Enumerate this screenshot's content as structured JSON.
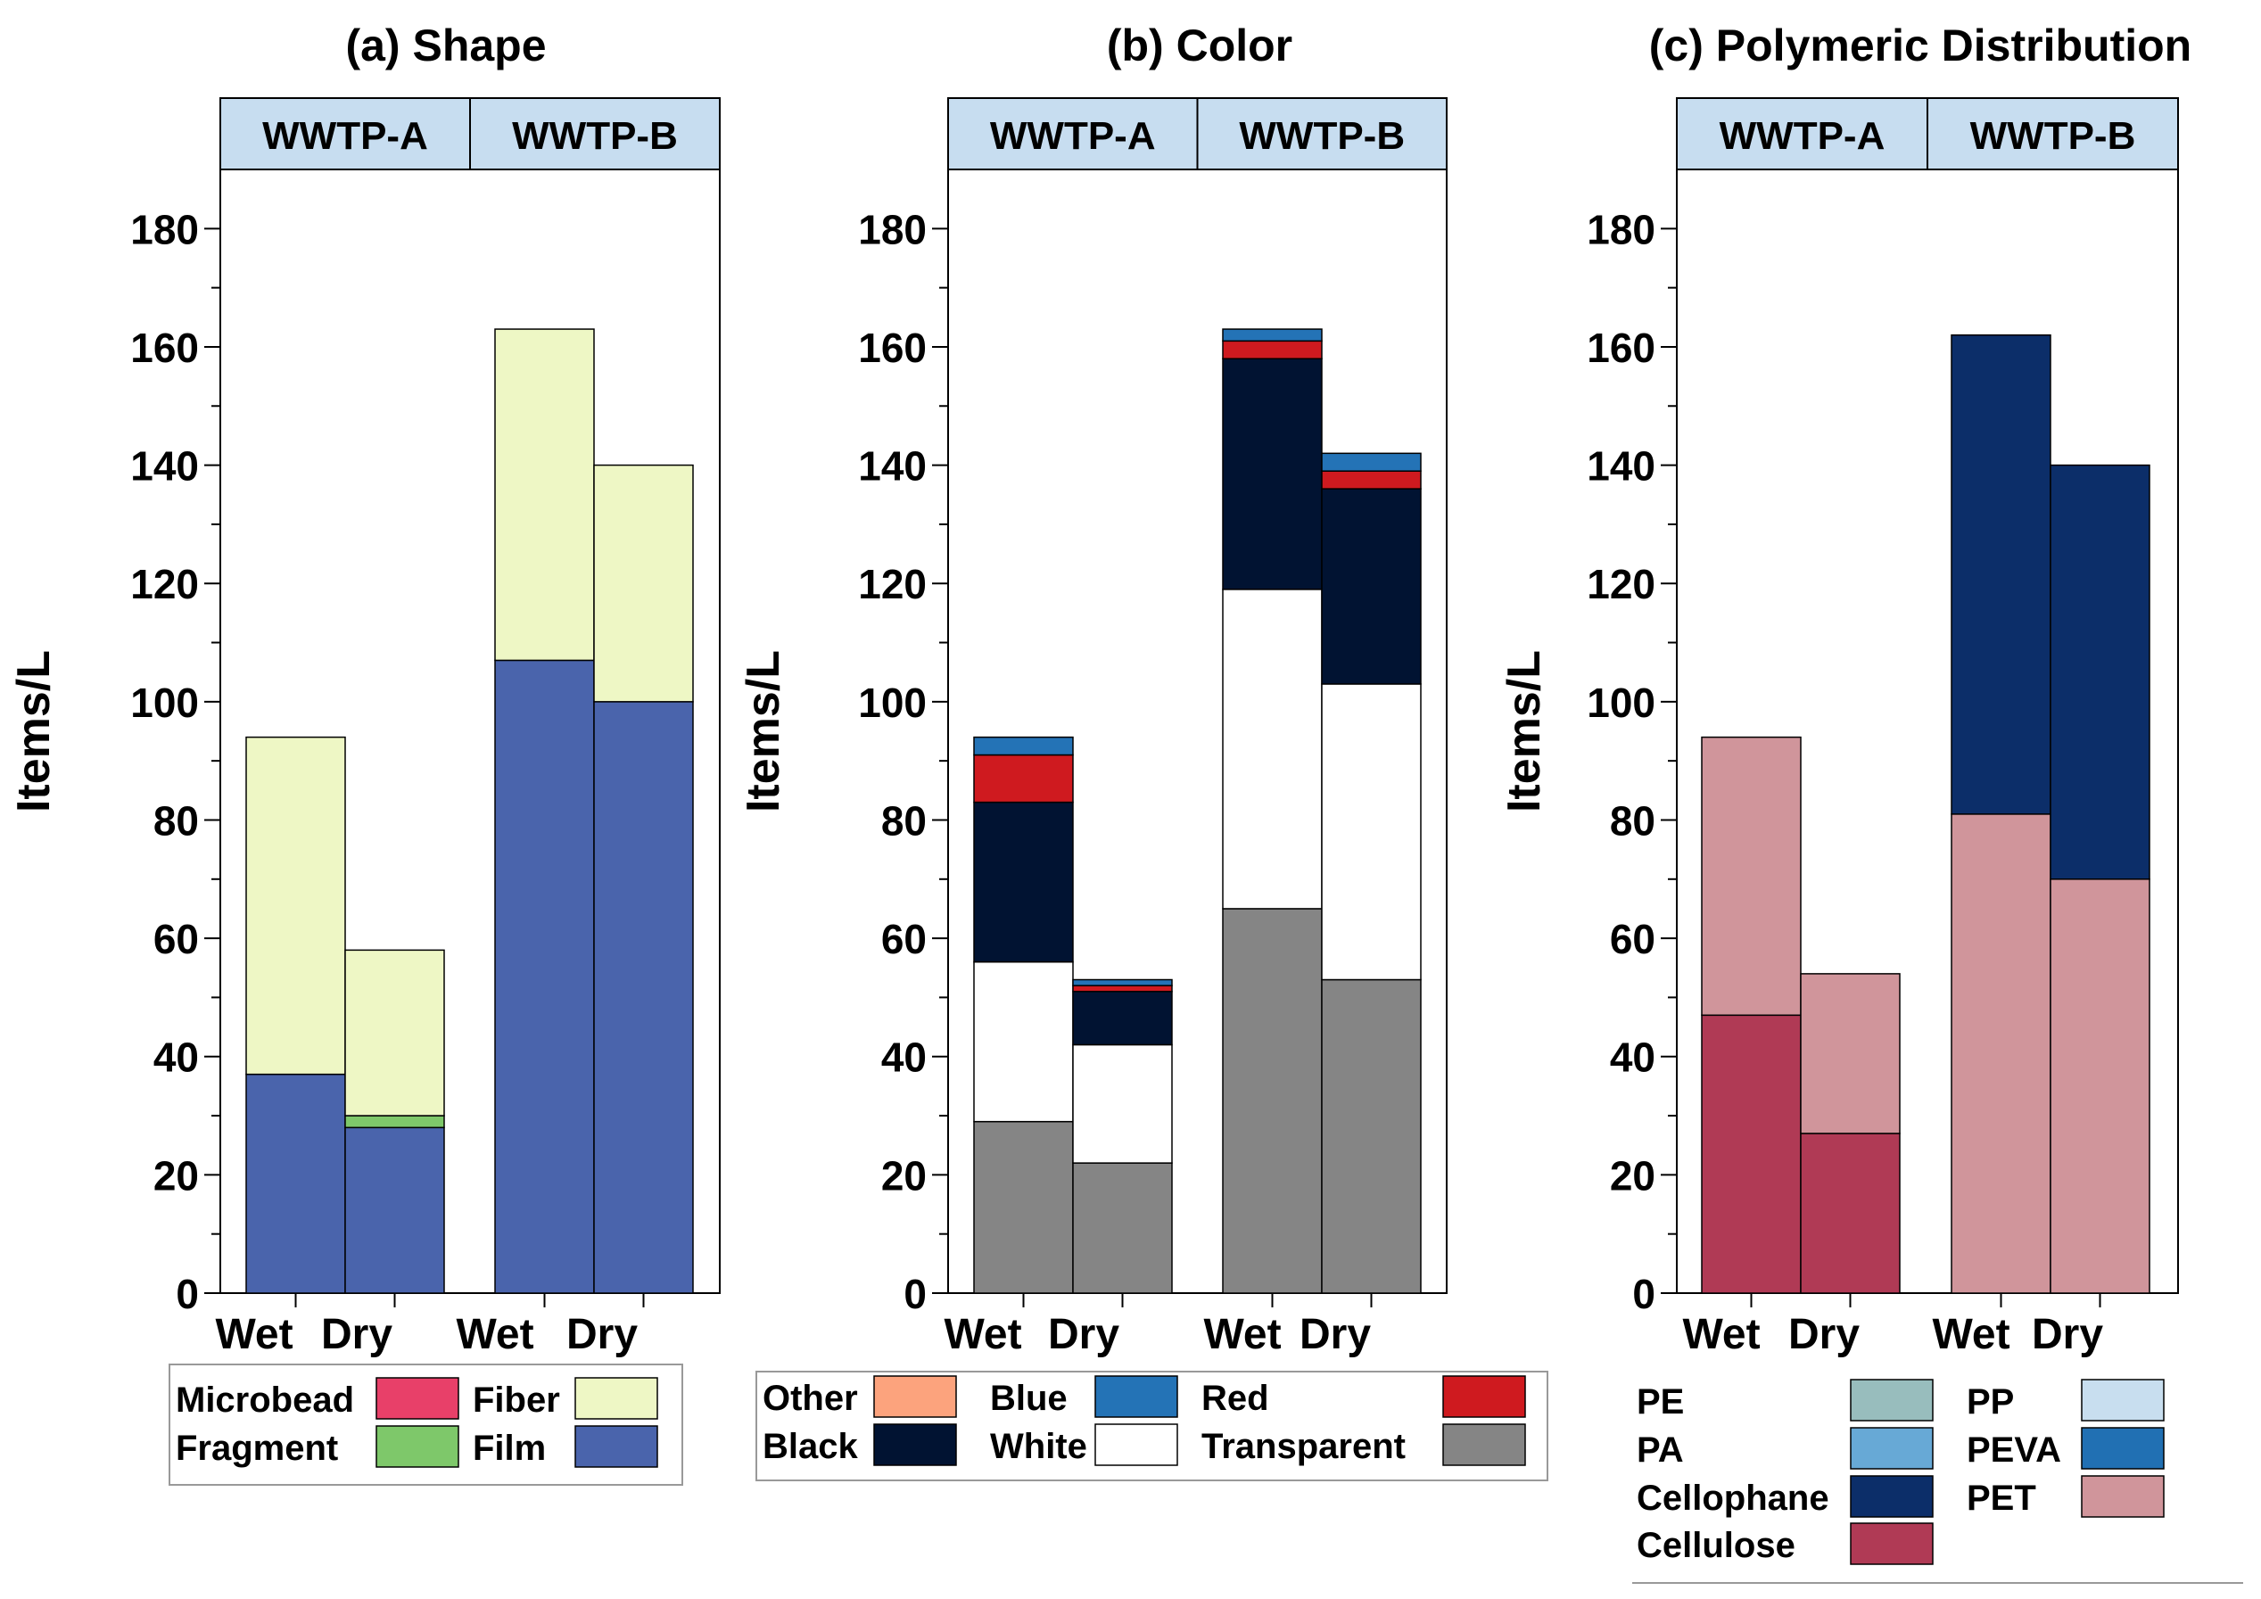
{
  "chart_data": [
    {
      "type": "bar",
      "stacked": true,
      "title": "(a) Shape",
      "ylabel": "Items/L",
      "ylim": [
        0,
        190
      ],
      "yticks": [
        0,
        20,
        40,
        60,
        80,
        100,
        120,
        140,
        160,
        180
      ],
      "groups": [
        {
          "label": "WWTP-A",
          "bars": [
            {
              "label": "Wet",
              "segments": [
                {
                  "name": "Film",
                  "value": 37
                },
                {
                  "name": "Fiber",
                  "value": 57
                }
              ]
            },
            {
              "label": "Dry",
              "segments": [
                {
                  "name": "Film",
                  "value": 28
                },
                {
                  "name": "Fragment",
                  "value": 2
                },
                {
                  "name": "Fiber",
                  "value": 28
                }
              ]
            }
          ]
        },
        {
          "label": "WWTP-B",
          "bars": [
            {
              "label": "Wet",
              "segments": [
                {
                  "name": "Film",
                  "value": 107
                },
                {
                  "name": "Fiber",
                  "value": 56
                }
              ]
            },
            {
              "label": "Dry",
              "segments": [
                {
                  "name": "Film",
                  "value": 100
                },
                {
                  "name": "Fiber",
                  "value": 40
                }
              ]
            }
          ]
        }
      ],
      "legend": [
        {
          "name": "Microbead",
          "color": "#e84069"
        },
        {
          "name": "Fiber",
          "color": "#eef7c5"
        },
        {
          "name": "Fragment",
          "color": "#7ec86a"
        },
        {
          "name": "Film",
          "color": "#4a64ac"
        }
      ]
    },
    {
      "type": "bar",
      "stacked": true,
      "title": "(b) Color",
      "ylabel": "Items/L",
      "ylim": [
        0,
        190
      ],
      "yticks": [
        0,
        20,
        40,
        60,
        80,
        100,
        120,
        140,
        160,
        180
      ],
      "groups": [
        {
          "label": "WWTP-A",
          "bars": [
            {
              "label": "Wet",
              "segments": [
                {
                  "name": "Transparent",
                  "value": 29
                },
                {
                  "name": "White",
                  "value": 27
                },
                {
                  "name": "Black",
                  "value": 27
                },
                {
                  "name": "Red",
                  "value": 8
                },
                {
                  "name": "Blue",
                  "value": 3
                }
              ]
            },
            {
              "label": "Dry",
              "segments": [
                {
                  "name": "Transparent",
                  "value": 22
                },
                {
                  "name": "White",
                  "value": 20
                },
                {
                  "name": "Black",
                  "value": 9
                },
                {
                  "name": "Red",
                  "value": 1
                },
                {
                  "name": "Blue",
                  "value": 1
                }
              ]
            }
          ]
        },
        {
          "label": "WWTP-B",
          "bars": [
            {
              "label": "Wet",
              "segments": [
                {
                  "name": "Transparent",
                  "value": 65
                },
                {
                  "name": "White",
                  "value": 54
                },
                {
                  "name": "Black",
                  "value": 39
                },
                {
                  "name": "Red",
                  "value": 3
                },
                {
                  "name": "Blue",
                  "value": 2
                }
              ]
            },
            {
              "label": "Dry",
              "segments": [
                {
                  "name": "Transparent",
                  "value": 53
                },
                {
                  "name": "White",
                  "value": 50
                },
                {
                  "name": "Black",
                  "value": 33
                },
                {
                  "name": "Red",
                  "value": 3
                },
                {
                  "name": "Blue",
                  "value": 3
                }
              ]
            }
          ]
        }
      ],
      "legend": [
        {
          "name": "Other",
          "color": "#fca37d"
        },
        {
          "name": "Blue",
          "color": "#2473b6"
        },
        {
          "name": "Red",
          "color": "#cf1a1f"
        },
        {
          "name": "Black",
          "color": "#011332"
        },
        {
          "name": "White",
          "color": "#ffffff"
        },
        {
          "name": "Transparent",
          "color": "#858585"
        }
      ]
    },
    {
      "type": "bar",
      "stacked": true,
      "title": "(c) Polymeric Distribution",
      "ylabel": "Items/L",
      "ylim": [
        0,
        190
      ],
      "yticks": [
        0,
        20,
        40,
        60,
        80,
        100,
        120,
        140,
        160,
        180
      ],
      "groups": [
        {
          "label": "WWTP-A",
          "bars": [
            {
              "label": "Wet",
              "segments": [
                {
                  "name": "Cellulose",
                  "value": 47
                },
                {
                  "name": "PET",
                  "value": 47
                }
              ]
            },
            {
              "label": "Dry",
              "segments": [
                {
                  "name": "Cellulose",
                  "value": 27
                },
                {
                  "name": "PET",
                  "value": 27
                }
              ]
            }
          ]
        },
        {
          "label": "WWTP-B",
          "bars": [
            {
              "label": "Wet",
              "segments": [
                {
                  "name": "PET",
                  "value": 81
                },
                {
                  "name": "Cellophane",
                  "value": 81
                }
              ]
            },
            {
              "label": "Dry",
              "segments": [
                {
                  "name": "PET",
                  "value": 70
                },
                {
                  "name": "Cellophane",
                  "value": 70
                }
              ]
            }
          ]
        }
      ],
      "legend": [
        {
          "name": "PE",
          "color": "#98bdbd"
        },
        {
          "name": "PP",
          "color": "#c8deef"
        },
        {
          "name": "PA",
          "color": "#67a9d6"
        },
        {
          "name": "PEVA",
          "color": "#2170b3"
        },
        {
          "name": "Cellophane",
          "color": "#0c2e69"
        },
        {
          "name": "PET",
          "color": "#d0959b"
        },
        {
          "name": "Cellulose",
          "color": "#b03a55"
        }
      ]
    }
  ]
}
